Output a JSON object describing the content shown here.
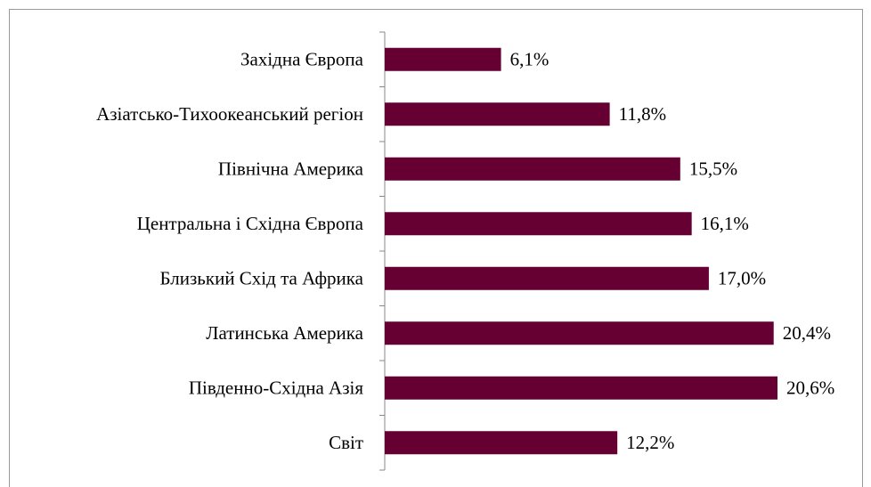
{
  "chart_data": {
    "type": "bar",
    "orientation": "horizontal",
    "categories": [
      "Західна Європа",
      "Азіатсько-Тихоокеанський регіон",
      "Північна Америка",
      "Центральна і Східна Європа",
      "Близький Схід та Африка",
      "Латинська Америка",
      "Південно-Східна Азія",
      "Світ"
    ],
    "values": [
      6.1,
      11.8,
      15.5,
      16.1,
      17.0,
      20.4,
      20.6,
      12.2
    ],
    "value_labels": [
      "6,1%",
      "11,8%",
      "15,5%",
      "16,1%",
      "17,0%",
      "20,4%",
      "20,6%",
      "12,2%"
    ],
    "color": "#660033"
  }
}
